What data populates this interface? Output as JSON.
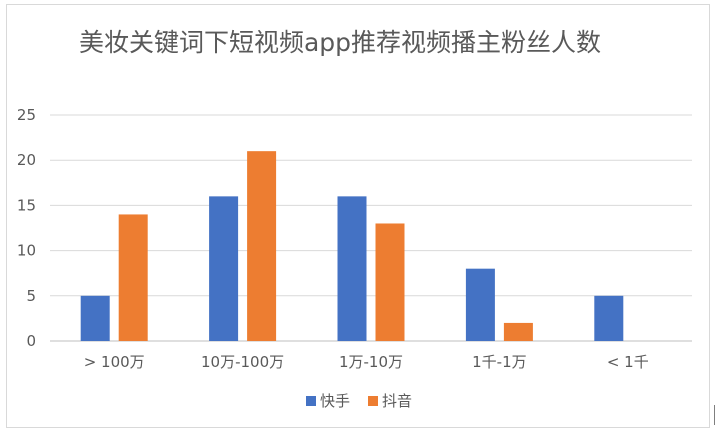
{
  "chart_data": {
    "type": "bar",
    "title": "美妆关键词下短视频app推荐视频播主粉丝人数",
    "categories": [
      "> 100万",
      "10万-100万",
      "1万-10万",
      "1千-1万",
      "< 1千"
    ],
    "series": [
      {
        "name": "快手",
        "values": [
          5,
          16,
          16,
          8,
          5
        ],
        "color": "#4472c4"
      },
      {
        "name": "抖音",
        "values": [
          14,
          21,
          13,
          2,
          0
        ],
        "color": "#ed7d31"
      }
    ],
    "yticks": [
      "0",
      "5",
      "10",
      "15",
      "20",
      "25"
    ],
    "ylim": [
      0,
      25
    ],
    "grid": true,
    "legend_position": "bottom"
  }
}
